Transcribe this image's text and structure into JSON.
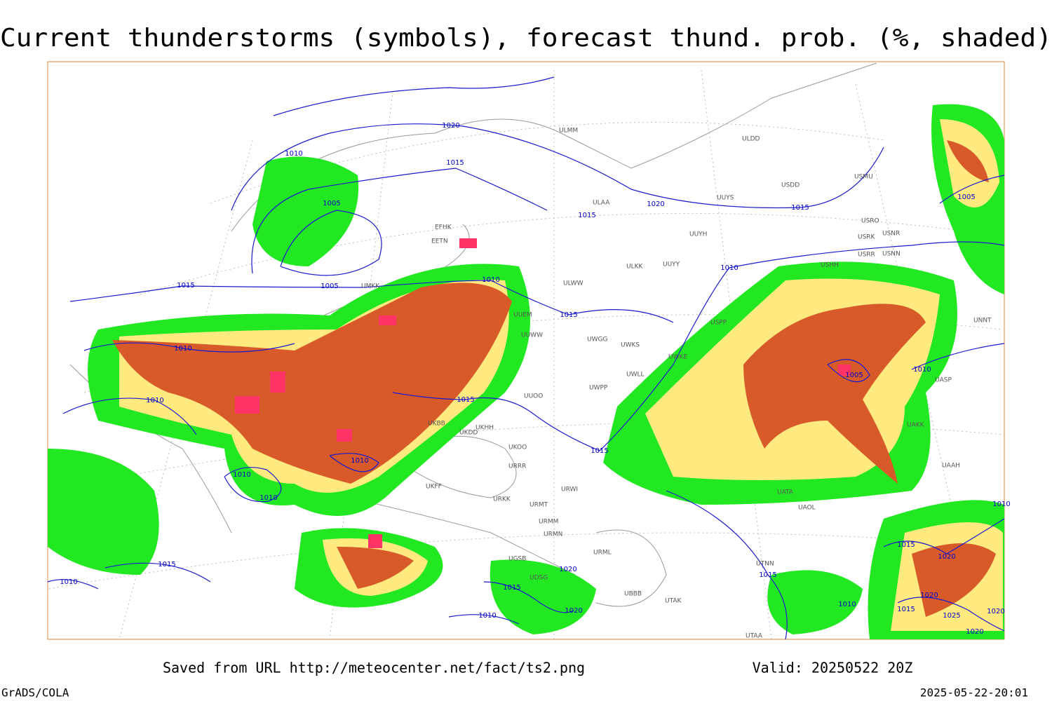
{
  "header": {
    "title": "Current thunderstorms (symbols), forecast thund. prob. (%, shaded)"
  },
  "map": {
    "isobar_labels": [
      "1020",
      "1010",
      "1015",
      "1005",
      "1015",
      "1005",
      "1010",
      "1015",
      "1010",
      "1010",
      "1015",
      "1010",
      "1010",
      "1010",
      "1015",
      "1010",
      "1020",
      "1015",
      "1015",
      "1010",
      "1005",
      "1010",
      "1005",
      "1015",
      "1010",
      "1015",
      "1020",
      "1015",
      "1015",
      "1020",
      "1020",
      "1010",
      "1010",
      "1020",
      "1015",
      "1025",
      "1020",
      "1020"
    ],
    "station_labels": [
      "ULMM",
      "ULDD",
      "USMU",
      "ULAA",
      "UUYS",
      "USDD",
      "USRO",
      "USRK",
      "USNR",
      "USRR",
      "USNN",
      "UUYH",
      "UUYY",
      "ULKK",
      "ULWW",
      "USHH",
      "EFHK",
      "EETN",
      "UMKK",
      "UUEM",
      "UUWW",
      "UWGG",
      "UWKS",
      "UWKE",
      "USPP",
      "UNNT",
      "UWLL",
      "UWPP",
      "UUOO",
      "UASP",
      "UAKK",
      "UKBB",
      "UKDD",
      "UKHH",
      "UKOO",
      "URRR",
      "URWI",
      "URMT",
      "URKK",
      "URMM",
      "URMN",
      "UATA",
      "UAOL",
      "UTNN",
      "UTAK",
      "UBBB",
      "URML",
      "UGSB",
      "UTAA",
      "UAAH",
      "UKFF",
      "UDSG"
    ]
  },
  "footer": {
    "source": "Saved from URL http://meteocenter.net/fact/ts2.png",
    "valid": "Valid: 20250522 20Z",
    "software": "GrADS/COLA",
    "timestamp": "2025-05-22-20:01"
  }
}
